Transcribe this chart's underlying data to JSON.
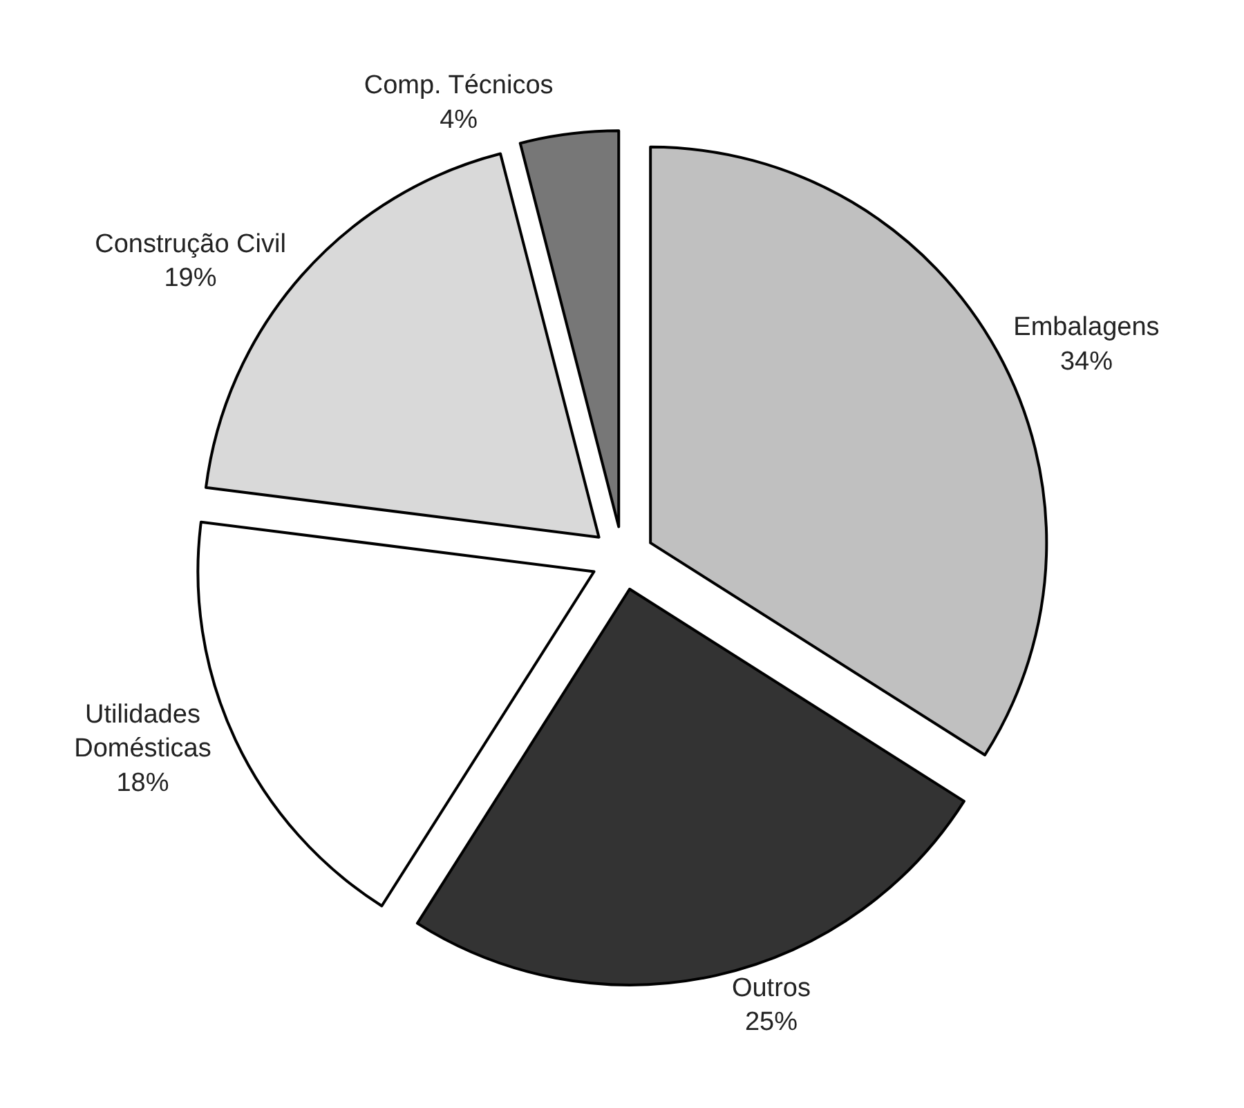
{
  "chart_data": {
    "type": "pie",
    "categories": [
      "Embalagens",
      "Outros",
      "Utilidades\nDomésticas",
      "Construção Civil",
      "Comp. Técnicos"
    ],
    "values": [
      34,
      25,
      18,
      19,
      4
    ],
    "value_labels": [
      "34%",
      "25%",
      "18%",
      "19%",
      "4%"
    ],
    "colors": [
      "#c0c0c0",
      "#333333",
      "#ffffff",
      "#d9d9d9",
      "#777777"
    ],
    "legend": false
  }
}
